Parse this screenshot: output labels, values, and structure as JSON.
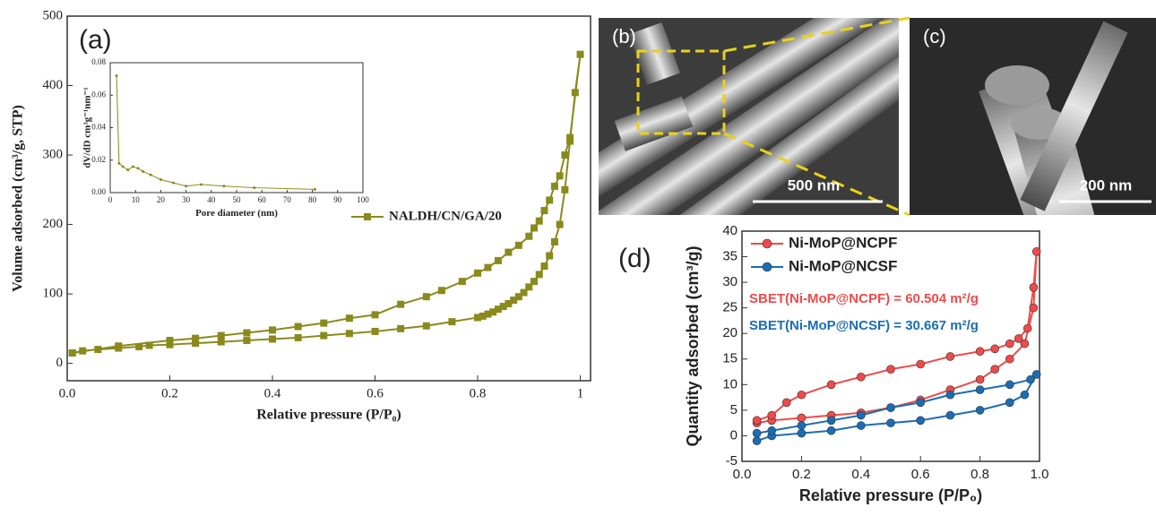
{
  "chart_data": [
    {
      "type": "line",
      "panel_label": "(a)",
      "xlabel": "Relative pressure (P/P₀)",
      "ylabel": "Volume adsorbed (cm³/g, STP)",
      "xlim": [
        0,
        1.02
      ],
      "xticks": [
        {
          "value": 0,
          "label": "0.0"
        },
        0.2,
        0.4,
        0.6,
        0.8,
        1
      ],
      "ylim": [
        -25,
        500
      ],
      "yticks": [
        0,
        100,
        200,
        300,
        400,
        500
      ],
      "marker": "square",
      "legend": "right",
      "series": [
        {
          "name": "NALDH/CN/GA/20",
          "color": "#8a8a1c",
          "x": [
            0.01,
            0.03,
            0.06,
            0.1,
            0.14,
            0.16,
            0.2,
            0.25,
            0.3,
            0.35,
            0.4,
            0.45,
            0.5,
            0.55,
            0.6,
            0.65,
            0.7,
            0.75,
            0.8,
            0.81,
            0.82,
            0.83,
            0.84,
            0.85,
            0.86,
            0.87,
            0.88,
            0.89,
            0.9,
            0.91,
            0.92,
            0.93,
            0.94,
            0.95,
            0.96,
            0.97,
            0.98,
            0.99,
            1.0,
            0.98,
            0.97,
            0.96,
            0.95,
            0.94,
            0.93,
            0.92,
            0.91,
            0.9,
            0.88,
            0.86,
            0.84,
            0.82,
            0.8,
            0.77,
            0.73,
            0.7,
            0.65,
            0.6,
            0.55,
            0.5,
            0.45,
            0.4,
            0.35,
            0.3,
            0.25,
            0.2,
            0.1,
            0.01
          ],
          "values": [
            15,
            18,
            20,
            22,
            24,
            26,
            27,
            29,
            31,
            33,
            35,
            37,
            40,
            43,
            46,
            50,
            54,
            60,
            66,
            68,
            71,
            74,
            78,
            82,
            86,
            91,
            96,
            102,
            110,
            118,
            128,
            140,
            155,
            175,
            200,
            250,
            320,
            390,
            445,
            325,
            300,
            270,
            255,
            235,
            220,
            205,
            195,
            183,
            170,
            160,
            148,
            138,
            130,
            118,
            105,
            96,
            85,
            70,
            65,
            58,
            53,
            48,
            44,
            40,
            36,
            33,
            25,
            15
          ]
        }
      ]
    },
    {
      "type": "line",
      "xlabel": "Pore diameter (nm)",
      "ylabel": "dV/dD cm³g⁻¹nm⁻¹",
      "xlim": [
        0,
        100
      ],
      "xticks": [
        0,
        10,
        20,
        30,
        40,
        50,
        60,
        70,
        80,
        90,
        100
      ],
      "ylim": [
        0,
        0.08
      ],
      "yticks": [
        {
          "value": 0,
          "label": "0.00"
        },
        0.02,
        0.04,
        0.06,
        0.08
      ],
      "marker": "dot",
      "series": [
        {
          "color": "#8a8a1c",
          "x": [
            2.5,
            3.5,
            5,
            7,
            9,
            11,
            13,
            16,
            20,
            25,
            30,
            36,
            45,
            57,
            81
          ],
          "values": [
            0.072,
            0.018,
            0.016,
            0.014,
            0.016,
            0.015,
            0.013,
            0.011,
            0.008,
            0.006,
            0.004,
            0.005,
            0.004,
            0.003,
            0.002
          ]
        }
      ]
    },
    {
      "type": "line",
      "panel_label": "(d)",
      "xlabel": "Relative pressure (P/P₀)",
      "ylabel": "Quantity adsorbed (cm³/g)",
      "xlim": [
        0,
        1
      ],
      "xticks": [
        {
          "value": 0,
          "label": "0.0"
        },
        0.2,
        0.4,
        0.6,
        0.8,
        {
          "value": 1,
          "label": "1.0"
        }
      ],
      "ylim": [
        -5,
        40
      ],
      "yticks": [
        -5,
        0,
        5,
        10,
        15,
        20,
        25,
        30,
        35,
        40
      ],
      "marker": "circle",
      "legend": "upper left",
      "annotations": [
        {
          "text": "SBET(Ni-MoP@NCPF) = 60.504 m²/g",
          "color": "#f04a4a"
        },
        {
          "text": "SBET(Ni-MoP@NCSF) = 30.667 m²/g",
          "color": "#1b6db3"
        }
      ],
      "series": [
        {
          "name": "Ni-MoP@NCPF",
          "color": "#f04a4a",
          "x": [
            0.05,
            0.1,
            0.2,
            0.3,
            0.4,
            0.5,
            0.6,
            0.7,
            0.8,
            0.85,
            0.9,
            0.95,
            0.98,
            0.99,
            0.98,
            0.96,
            0.93,
            0.9,
            0.85,
            0.8,
            0.7,
            0.6,
            0.5,
            0.4,
            0.3,
            0.2,
            0.15,
            0.1,
            0.05
          ],
          "values": [
            2.5,
            3,
            3.5,
            4,
            4.5,
            5.5,
            7,
            9,
            11,
            13,
            15,
            18,
            25,
            36,
            29,
            21,
            19,
            18,
            17,
            16.5,
            15.5,
            14,
            13,
            11.5,
            10,
            8,
            6.5,
            4,
            3
          ]
        },
        {
          "name": "Ni-MoP@NCSF",
          "color": "#1b6db3",
          "x": [
            0.05,
            0.1,
            0.2,
            0.3,
            0.4,
            0.5,
            0.6,
            0.7,
            0.8,
            0.9,
            0.95,
            0.99,
            0.97,
            0.9,
            0.8,
            0.7,
            0.6,
            0.5,
            0.4,
            0.3,
            0.2,
            0.1,
            0.05
          ],
          "values": [
            -1,
            0,
            0.5,
            1,
            2,
            2.5,
            3,
            4,
            5,
            6.5,
            8,
            12,
            11,
            10,
            9,
            8,
            6.5,
            5.5,
            4,
            3,
            2,
            1,
            0.5
          ]
        }
      ]
    }
  ],
  "images": [
    {
      "label": "(b)",
      "scale_bar": "500 nm"
    },
    {
      "label": "(c)",
      "scale_bar": "200 nm"
    }
  ]
}
